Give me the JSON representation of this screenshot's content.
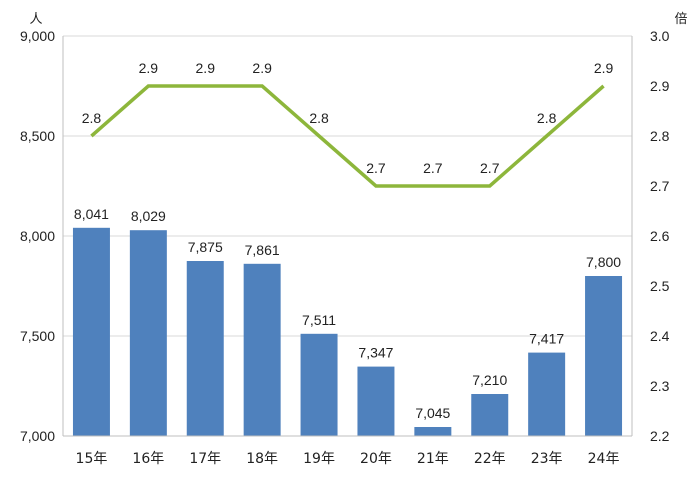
{
  "chart_data": {
    "type": "bar+line",
    "categories": [
      "15年",
      "16年",
      "17年",
      "18年",
      "19年",
      "20年",
      "21年",
      "22年",
      "23年",
      "24年"
    ],
    "bar_series": {
      "values": [
        8041,
        8029,
        7875,
        7861,
        7511,
        7347,
        7045,
        7210,
        7417,
        7800
      ],
      "labels": [
        "8,041",
        "8,029",
        "7,875",
        "7,861",
        "7,511",
        "7,347",
        "7,045",
        "7,210",
        "7,417",
        "7,800"
      ],
      "color": "#4f81bd",
      "axis": "left"
    },
    "line_series": {
      "values": [
        2.8,
        2.9,
        2.9,
        2.9,
        2.8,
        2.7,
        2.7,
        2.7,
        2.8,
        2.9
      ],
      "labels": [
        "2.8",
        "2.9",
        "2.9",
        "2.9",
        "2.8",
        "2.7",
        "2.7",
        "2.7",
        "2.8",
        "2.9"
      ],
      "color": "#8db63b",
      "axis": "right"
    },
    "left_axis": {
      "unit": "人",
      "ylim": [
        7000,
        9000
      ],
      "ticks": [
        7000,
        7500,
        8000,
        8500,
        9000
      ],
      "tick_labels": [
        "7,000",
        "7,500",
        "8,000",
        "8,500",
        "9,000"
      ]
    },
    "right_axis": {
      "unit": "倍",
      "ylim": [
        2.2,
        3.0
      ],
      "ticks": [
        2.2,
        2.3,
        2.4,
        2.5,
        2.6,
        2.7,
        2.8,
        2.9,
        3.0
      ],
      "tick_labels": [
        "2.2",
        "2.3",
        "2.4",
        "2.5",
        "2.6",
        "2.7",
        "2.8",
        "2.9",
        "3.0"
      ]
    },
    "grid": true,
    "grid_color": "#d9d9d9",
    "title": ""
  }
}
